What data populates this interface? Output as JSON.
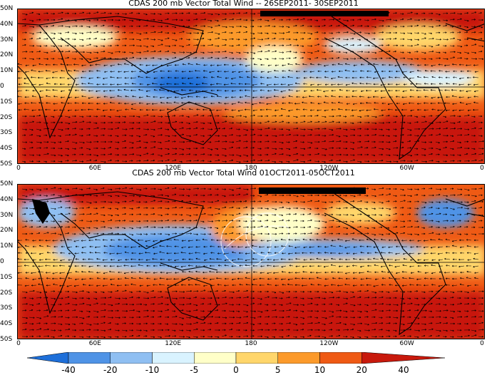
{
  "panels": [
    {
      "id": "top",
      "title": "CDAS 200 mb Vector Total Wind -- 26SEP2011- 30SEP2011"
    },
    {
      "id": "bottom",
      "title": "CDAS 200 mb Vector Total Wind 01OCT2011-05OCT2011"
    }
  ],
  "lat_labels": [
    "50N",
    "40N",
    "30N",
    "20N",
    "10N",
    "0",
    "10S",
    "20S",
    "30S",
    "40S",
    "50S"
  ],
  "lon_labels": [
    "0",
    "60E",
    "120E",
    "180",
    "120W",
    "60W",
    "0"
  ],
  "colorbar": {
    "labels": [
      "-40",
      "-20",
      "-10",
      "-5",
      "0",
      "5",
      "10",
      "20",
      "40"
    ],
    "colors": [
      "#1e6fd9",
      "#4f93e6",
      "#8fbff2",
      "#d9f3ff",
      "#ffffc8",
      "#ffd66b",
      "#fc9a2b",
      "#ef5a14",
      "#c8190c"
    ]
  }
}
